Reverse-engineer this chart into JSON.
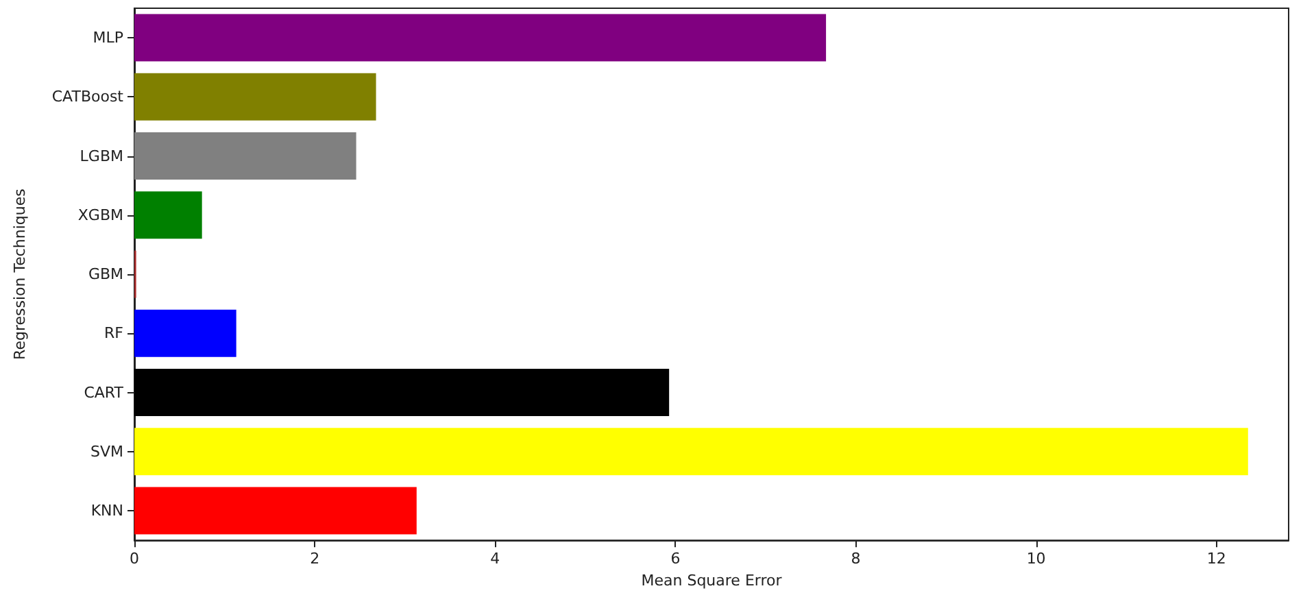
{
  "chart_data": {
    "type": "bar",
    "orientation": "horizontal",
    "xlabel": "Mean Square Error",
    "ylabel": "Regression Techniques",
    "categories": [
      "MLP",
      "CATBoost",
      "LGBM",
      "XGBM",
      "GBM",
      "RF",
      "CART",
      "SVM",
      "KNN"
    ],
    "values": [
      7.67,
      2.68,
      2.46,
      0.75,
      0.02,
      1.13,
      5.93,
      12.35,
      3.13
    ],
    "colors": [
      "#800080",
      "#808000",
      "#808080",
      "#008000",
      "#a52a2a",
      "#0000ff",
      "#000000",
      "#ffff00",
      "#ff0000"
    ],
    "xlim": [
      0,
      12.8
    ],
    "xticks": [
      0,
      2,
      4,
      6,
      8,
      10,
      12
    ]
  }
}
